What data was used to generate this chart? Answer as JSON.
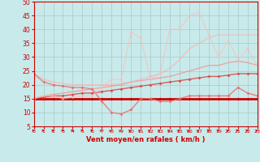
{
  "x": [
    0,
    1,
    2,
    3,
    4,
    5,
    6,
    7,
    8,
    9,
    10,
    11,
    12,
    13,
    14,
    15,
    16,
    17,
    18,
    19,
    20,
    21,
    22,
    23
  ],
  "line_flat1": [
    15,
    15,
    15,
    15,
    15,
    15,
    15,
    15,
    15,
    15,
    15,
    15,
    15,
    15,
    15,
    15,
    15,
    15,
    15,
    15,
    15,
    15,
    15,
    15
  ],
  "line_flat2": [
    15,
    15.5,
    16,
    16,
    16.5,
    17,
    17,
    17.5,
    18,
    18.5,
    19,
    19.5,
    20,
    20.5,
    21,
    21.5,
    22,
    22.5,
    23,
    23,
    23.5,
    24,
    24,
    24
  ],
  "line_diag1": [
    15,
    16,
    16.5,
    17,
    17.5,
    18,
    18.5,
    19,
    19.5,
    20,
    21,
    21.5,
    22,
    22.5,
    23,
    24,
    25,
    26,
    27,
    27,
    28,
    28.5,
    28,
    27
  ],
  "line_diag2": [
    24,
    22,
    21,
    20.5,
    20,
    20,
    20,
    20,
    20,
    20.5,
    21,
    22,
    23,
    24,
    26,
    29,
    33,
    35,
    37,
    38,
    38,
    38,
    38,
    38
  ],
  "line_jagged1": [
    24,
    21,
    20,
    19.5,
    19,
    19,
    18.5,
    14,
    10,
    9.5,
    11,
    15,
    15,
    14,
    14,
    15,
    16,
    16,
    16,
    16,
    16,
    19,
    17,
    16
  ],
  "line_jagged2": [
    15,
    16,
    16,
    15,
    15.5,
    16,
    16,
    19,
    22,
    22,
    39,
    37,
    22,
    24,
    40,
    40,
    45,
    46,
    38,
    30,
    36,
    29,
    33,
    27
  ],
  "background_color": "#c8eaea",
  "grid_color": "#a8caca",
  "line_styles": [
    {
      "color": "#cc0000",
      "lw": 2.0,
      "marker": "D",
      "ms": 2,
      "alpha": 1.0
    },
    {
      "color": "#dd4444",
      "lw": 1.0,
      "marker": "D",
      "ms": 2,
      "alpha": 0.85
    },
    {
      "color": "#ff8888",
      "lw": 1.0,
      "marker": null,
      "ms": 0,
      "alpha": 0.7
    },
    {
      "color": "#ffaaaa",
      "lw": 1.0,
      "marker": null,
      "ms": 0,
      "alpha": 0.6
    },
    {
      "color": "#ee6666",
      "lw": 1.0,
      "marker": "D",
      "ms": 2,
      "alpha": 0.8
    },
    {
      "color": "#ffbbbb",
      "lw": 1.0,
      "marker": "D",
      "ms": 2,
      "alpha": 0.6
    }
  ],
  "xlabel": "Vent moyen/en rafales ( km/h )",
  "xlabel_color": "#cc0000",
  "tick_color": "#cc0000",
  "ylim": [
    5,
    50
  ],
  "xlim": [
    0,
    23
  ],
  "yticks": [
    5,
    10,
    15,
    20,
    25,
    30,
    35,
    40,
    45,
    50
  ],
  "xticks": [
    0,
    1,
    2,
    3,
    4,
    5,
    6,
    7,
    8,
    9,
    10,
    11,
    12,
    13,
    14,
    15,
    16,
    17,
    18,
    19,
    20,
    21,
    22,
    23
  ],
  "arrow_angles_deg": [
    0,
    0,
    0,
    0,
    0,
    0,
    0,
    30,
    45,
    45,
    45,
    45,
    45,
    45,
    45,
    45,
    45,
    45,
    0,
    0,
    0,
    0,
    0,
    30
  ]
}
